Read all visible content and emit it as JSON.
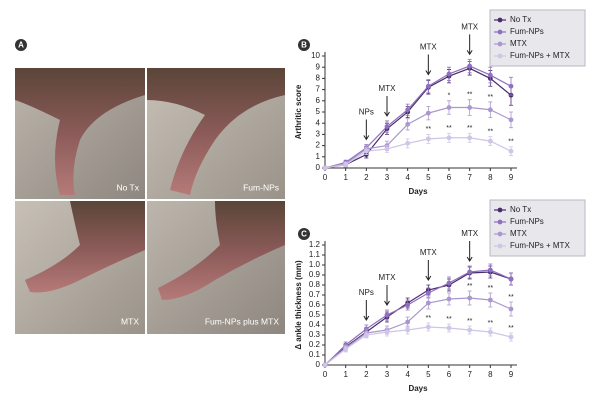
{
  "panel_a": {
    "label": "A",
    "images": [
      {
        "caption": "No Tx"
      },
      {
        "caption": "Fum-NPs"
      },
      {
        "caption": "MTX"
      },
      {
        "caption": "Fum-NPs plus MTX"
      }
    ]
  },
  "chart_data": [
    {
      "type": "line",
      "panel_label": "B",
      "x_label": "Days",
      "y_label": "Arthritic score",
      "legend": "upper right",
      "grid": false,
      "x": [
        0,
        1,
        2,
        3,
        4,
        5,
        6,
        7,
        8,
        9
      ],
      "xlim": [
        0,
        9
      ],
      "xticks": [
        0,
        1,
        2,
        3,
        4,
        5,
        6,
        7,
        8,
        9
      ],
      "ylim": [
        0,
        10
      ],
      "yticks": [
        0,
        1,
        2,
        3,
        4,
        5,
        6,
        7,
        8,
        9,
        10
      ],
      "series": [
        {
          "name": "No Tx",
          "color": "#4a2c6b",
          "values": [
            0,
            0.3,
            1.2,
            3.5,
            5.0,
            7.2,
            8.2,
            8.9,
            8.0,
            6.5
          ],
          "errors": [
            0,
            0.2,
            0.3,
            0.5,
            0.5,
            0.6,
            0.6,
            0.6,
            0.7,
            0.9
          ]
        },
        {
          "name": "Fum-NPs",
          "color": "#8e6fc0",
          "values": [
            0,
            0.5,
            1.8,
            3.7,
            5.2,
            7.3,
            8.4,
            9.1,
            8.3,
            7.3
          ],
          "errors": [
            0,
            0.2,
            0.3,
            0.5,
            0.5,
            0.6,
            0.6,
            0.6,
            0.7,
            0.8
          ]
        },
        {
          "name": "MTX",
          "color": "#ab97cf",
          "values": [
            0,
            0.4,
            1.7,
            2.0,
            3.9,
            4.9,
            5.4,
            5.4,
            5.2,
            4.3
          ],
          "errors": [
            0,
            0.2,
            0.3,
            0.4,
            0.5,
            0.6,
            0.6,
            0.7,
            0.7,
            0.7
          ]
        },
        {
          "name": "Fum-NPs + MTX",
          "color": "#cfc5e6",
          "values": [
            0,
            0.3,
            1.5,
            1.7,
            2.2,
            2.6,
            2.7,
            2.7,
            2.4,
            1.5
          ],
          "errors": [
            0,
            0.2,
            0.3,
            0.3,
            0.4,
            0.4,
            0.4,
            0.4,
            0.4,
            0.4
          ]
        }
      ],
      "annotations": [
        {
          "text": "NPs",
          "x": 2
        },
        {
          "text": "MTX",
          "x": 3
        },
        {
          "text": "MTX",
          "x": 5
        },
        {
          "text": "MTX",
          "x": 7
        }
      ],
      "significance": [
        {
          "series": 2,
          "x": 6,
          "label": "*"
        },
        {
          "series": 2,
          "x": 7,
          "label": "**"
        },
        {
          "series": 2,
          "x": 8,
          "label": "**"
        },
        {
          "series": 3,
          "x": 5,
          "label": "**"
        },
        {
          "series": 3,
          "x": 6,
          "label": "**"
        },
        {
          "series": 3,
          "x": 7,
          "label": "**"
        },
        {
          "series": 3,
          "x": 8,
          "label": "**"
        },
        {
          "series": 3,
          "x": 9,
          "label": "**"
        }
      ]
    },
    {
      "type": "line",
      "panel_label": "C",
      "x_label": "Days",
      "y_label": "Δ ankle thickness (mm)",
      "legend": "upper right",
      "grid": false,
      "x": [
        0,
        1,
        2,
        3,
        4,
        5,
        6,
        7,
        8,
        9
      ],
      "xlim": [
        0,
        9
      ],
      "xticks": [
        0,
        1,
        2,
        3,
        4,
        5,
        6,
        7,
        8,
        9
      ],
      "ylim": [
        0,
        1.2
      ],
      "yticks": [
        0,
        0.1,
        0.2,
        0.3,
        0.4,
        0.5,
        0.6,
        0.7,
        0.8,
        0.9,
        {
          "value": 1,
          "label": "1.0"
        },
        1.1,
        1.2
      ],
      "series": [
        {
          "name": "No Tx",
          "color": "#4a2c6b",
          "values": [
            0,
            0.18,
            0.33,
            0.48,
            0.62,
            0.75,
            0.8,
            0.92,
            0.93,
            0.86
          ],
          "errors": [
            0,
            0.03,
            0.04,
            0.05,
            0.05,
            0.05,
            0.06,
            0.06,
            0.06,
            0.06
          ]
        },
        {
          "name": "Fum-NPs",
          "color": "#8e6fc0",
          "values": [
            0,
            0.2,
            0.36,
            0.5,
            0.6,
            0.72,
            0.82,
            0.93,
            0.95,
            0.86
          ],
          "errors": [
            0,
            0.03,
            0.04,
            0.05,
            0.05,
            0.05,
            0.06,
            0.06,
            0.06,
            0.06
          ]
        },
        {
          "name": "MTX",
          "color": "#ab97cf",
          "values": [
            0,
            0.17,
            0.32,
            0.35,
            0.43,
            0.62,
            0.66,
            0.67,
            0.65,
            0.56
          ],
          "errors": [
            0,
            0.03,
            0.04,
            0.04,
            0.05,
            0.06,
            0.06,
            0.07,
            0.07,
            0.07
          ]
        },
        {
          "name": "Fum-NPs + MTX",
          "color": "#cfc5e6",
          "values": [
            0,
            0.16,
            0.3,
            0.33,
            0.35,
            0.38,
            0.37,
            0.35,
            0.33,
            0.28
          ],
          "errors": [
            0,
            0.03,
            0.03,
            0.04,
            0.04,
            0.04,
            0.04,
            0.04,
            0.04,
            0.04
          ]
        }
      ],
      "annotations": [
        {
          "text": "NPs",
          "x": 2
        },
        {
          "text": "MTX",
          "x": 3
        },
        {
          "text": "MTX",
          "x": 5
        },
        {
          "text": "MTX",
          "x": 7
        }
      ],
      "significance": [
        {
          "series": 2,
          "x": 7,
          "label": "**"
        },
        {
          "series": 2,
          "x": 8,
          "label": "**"
        },
        {
          "series": 2,
          "x": 9,
          "label": "**"
        },
        {
          "series": 3,
          "x": 5,
          "label": "**"
        },
        {
          "series": 3,
          "x": 6,
          "label": "**"
        },
        {
          "series": 3,
          "x": 7,
          "label": "**"
        },
        {
          "series": 3,
          "x": 8,
          "label": "**"
        },
        {
          "series": 3,
          "x": 9,
          "label": "**"
        }
      ]
    }
  ]
}
